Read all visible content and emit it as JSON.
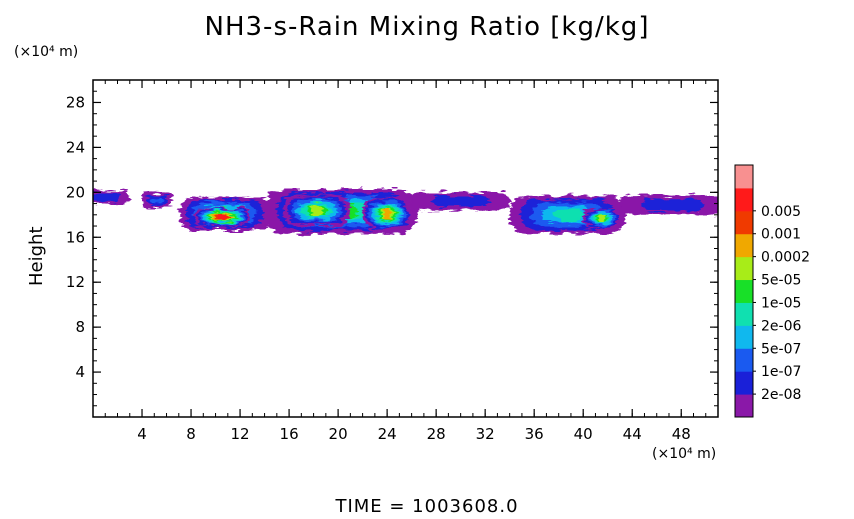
{
  "title": "NH3-s-Rain Mixing Ratio [kg/kg]",
  "y_unit": "(×10⁴ m)",
  "x_unit": "(×10⁴ m)",
  "time_label": "TIME  =  1003608.0",
  "chart_data": {
    "type": "heatmap",
    "title": "NH3-s-Rain Mixing Ratio [kg/kg]",
    "xlabel": "",
    "ylabel": "Height",
    "xlim": [
      0,
      51
    ],
    "ylim": [
      0,
      30
    ],
    "xticks": [
      "4",
      "8",
      "12",
      "16",
      "20",
      "24",
      "28",
      "32",
      "36",
      "40",
      "44",
      "48"
    ],
    "xtick_values": [
      4,
      8,
      12,
      16,
      20,
      24,
      28,
      32,
      36,
      40,
      44,
      48
    ],
    "yticks": [
      "4",
      "8",
      "12",
      "16",
      "20",
      "24",
      "28"
    ],
    "ytick_values": [
      4,
      8,
      12,
      16,
      20,
      24,
      28
    ],
    "colorbar": {
      "labels": [
        "2e-08",
        "1e-07",
        "5e-07",
        "2e-06",
        "1e-05",
        "5e-05",
        "0.0002",
        "0.001",
        "0.005"
      ],
      "colors": [
        "#8a18a8",
        "#1a20d8",
        "#1a5af0",
        "#10b8ee",
        "#10e0b0",
        "#18e028",
        "#a8ec18",
        "#f0a800",
        "#f03a00",
        "#ff1a1a",
        "#f89090"
      ]
    },
    "regions": [
      {
        "x": [
          -1,
          3
        ],
        "y": [
          19.0,
          20.2
        ],
        "level": 1
      },
      {
        "x": [
          4,
          6.5
        ],
        "y": [
          18.6,
          20.0
        ],
        "level": 2
      },
      {
        "x": [
          7,
          14.5
        ],
        "y": [
          16.6,
          19.6
        ],
        "level": 5
      },
      {
        "x": [
          8.3,
          12.8
        ],
        "y": [
          17.0,
          18.6
        ],
        "level": 9
      },
      {
        "x": [
          14,
          26.5
        ],
        "y": [
          16.3,
          20.3
        ],
        "level": 5
      },
      {
        "x": [
          15.5,
          21
        ],
        "y": [
          17.0,
          19.8
        ],
        "level": 6
      },
      {
        "x": [
          22,
          26
        ],
        "y": [
          16.6,
          19.6
        ],
        "level": 7
      },
      {
        "x": [
          26,
          34
        ],
        "y": [
          18.4,
          20.0
        ],
        "level": 1
      },
      {
        "x": [
          34,
          43.5
        ],
        "y": [
          16.3,
          19.7
        ],
        "level": 4
      },
      {
        "x": [
          40,
          43
        ],
        "y": [
          16.8,
          18.6
        ],
        "level": 6
      },
      {
        "x": [
          43,
          51.5
        ],
        "y": [
          18.0,
          19.8
        ],
        "level": 1
      }
    ]
  }
}
